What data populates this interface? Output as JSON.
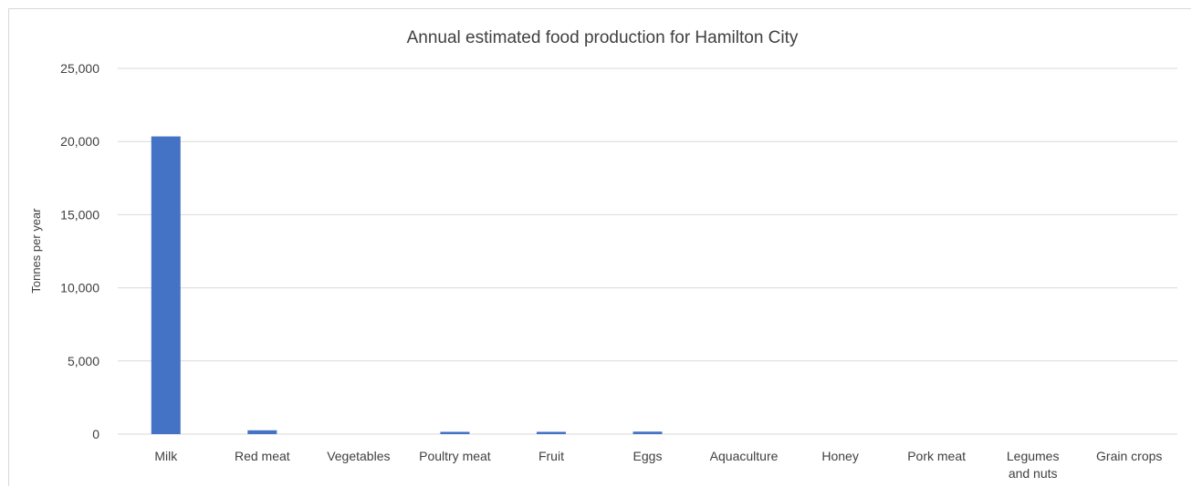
{
  "chart_data": {
    "type": "bar",
    "title": "Annual estimated food production for Hamilton City",
    "xlabel": "",
    "ylabel": "Tonnes per year",
    "ylim": [
      0,
      25000
    ],
    "yticks": [
      0,
      5000,
      10000,
      15000,
      20000,
      25000
    ],
    "ytick_labels": [
      "0",
      "5,000",
      "10,000",
      "15,000",
      "20,000",
      "25,000"
    ],
    "grid": true,
    "categories": [
      "Milk",
      "Red meat",
      "Vegetables",
      "Poultry meat",
      "Fruit",
      "Eggs",
      "Aquaculture",
      "Honey",
      "Pork meat",
      "Legumes and nuts",
      "Grain crops"
    ],
    "category_label_lines": [
      [
        "Milk"
      ],
      [
        "Red meat"
      ],
      [
        "Vegetables"
      ],
      [
        "Poultry meat"
      ],
      [
        "Fruit"
      ],
      [
        "Eggs"
      ],
      [
        "Aquaculture"
      ],
      [
        "Honey"
      ],
      [
        "Pork meat"
      ],
      [
        "Legumes",
        "and nuts"
      ],
      [
        "Grain crops"
      ]
    ],
    "values": [
      20350,
      260,
      0,
      45,
      45,
      170,
      0,
      0,
      0,
      0,
      0
    ],
    "bar_color": "#4472c4",
    "gridline_color": "#d9d9d9"
  }
}
